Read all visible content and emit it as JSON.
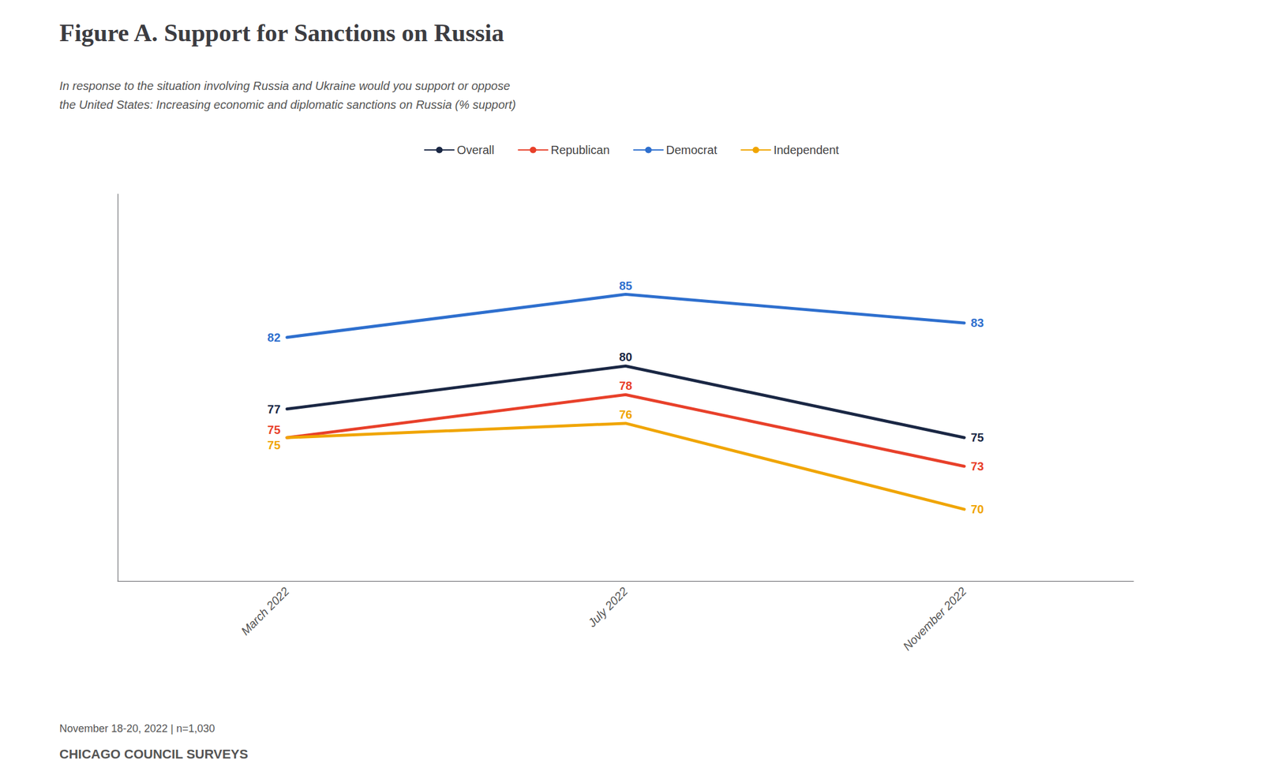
{
  "chart_data": {
    "type": "line",
    "title": "Figure A. Support for Sanctions on Russia",
    "subtitle": [
      "In response to the situation involving Russia and Ukraine would you support or oppose",
      "the United States: Increasing economic and diplomatic sanctions on Russia (% support)"
    ],
    "annotations": [
      "November 18-20, 2022 | n=1,030",
      "CHICAGO COUNCIL SURVEYS"
    ],
    "categories": [
      "March 2022",
      "July 2022",
      "November 2022"
    ],
    "series": [
      {
        "name": "Overall",
        "color": "#1a2744",
        "values": [
          77,
          80,
          75
        ]
      },
      {
        "name": "Republican",
        "color": "#e8402a",
        "values": [
          75,
          78,
          73
        ]
      },
      {
        "name": "Democrat",
        "color": "#2e6fce",
        "values": [
          82,
          85,
          83
        ]
      },
      {
        "name": "Independent",
        "color": "#f0a500",
        "values": [
          75,
          76,
          70
        ]
      }
    ],
    "ylim": [
      65,
      92
    ],
    "grid": false,
    "legend": "top",
    "data_labels": true,
    "tick_labels": "x"
  }
}
